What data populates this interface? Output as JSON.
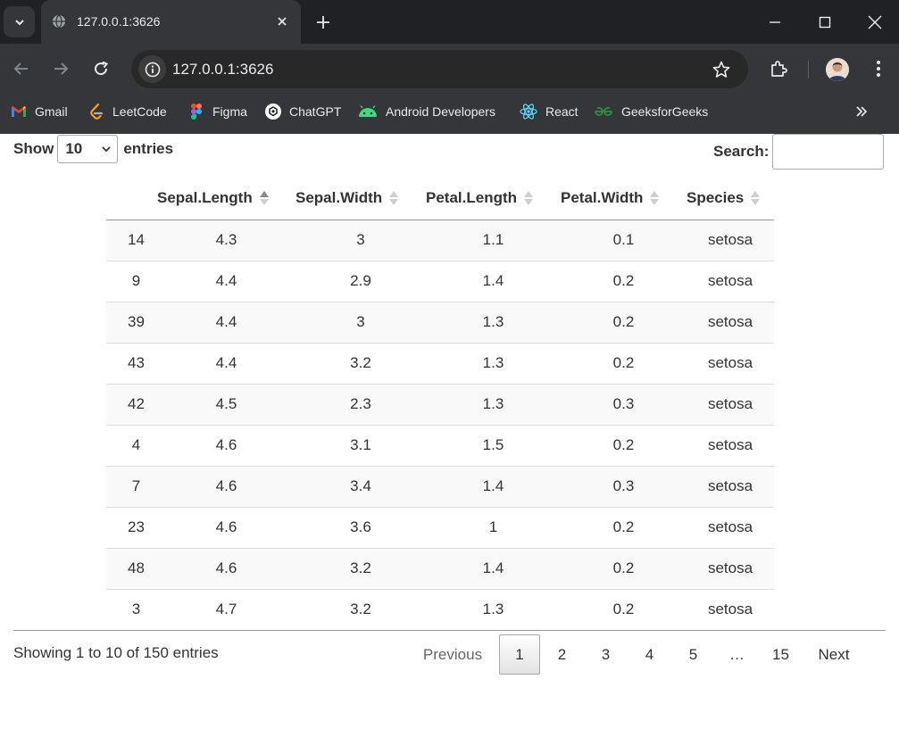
{
  "browser": {
    "tab_title": "127.0.0.1:3626",
    "url": "127.0.0.1:3626",
    "bookmarks": [
      {
        "label": "Gmail",
        "icon": "gmail-icon"
      },
      {
        "label": "LeetCode",
        "icon": "leetcode-icon"
      },
      {
        "label": "Figma",
        "icon": "figma-icon"
      },
      {
        "label": "ChatGPT",
        "icon": "chatgpt-icon"
      },
      {
        "label": "Android Developers",
        "icon": "android-icon"
      },
      {
        "label": "React",
        "icon": "react-icon"
      },
      {
        "label": "GeeksforGeeks",
        "icon": "geeksforgeeks-icon"
      }
    ]
  },
  "controls": {
    "show_label": "Show",
    "length_value": "10",
    "entries_label": "entries",
    "search_label": "Search:",
    "search_value": ""
  },
  "table": {
    "columns": [
      "",
      "Sepal.Length",
      "Sepal.Width",
      "Petal.Length",
      "Petal.Width",
      "Species"
    ],
    "sorted_column": "Sepal.Length",
    "rows": [
      [
        "14",
        "4.3",
        "3",
        "1.1",
        "0.1",
        "setosa"
      ],
      [
        "9",
        "4.4",
        "2.9",
        "1.4",
        "0.2",
        "setosa"
      ],
      [
        "39",
        "4.4",
        "3",
        "1.3",
        "0.2",
        "setosa"
      ],
      [
        "43",
        "4.4",
        "3.2",
        "1.3",
        "0.2",
        "setosa"
      ],
      [
        "42",
        "4.5",
        "2.3",
        "1.3",
        "0.3",
        "setosa"
      ],
      [
        "4",
        "4.6",
        "3.1",
        "1.5",
        "0.2",
        "setosa"
      ],
      [
        "7",
        "4.6",
        "3.4",
        "1.4",
        "0.3",
        "setosa"
      ],
      [
        "23",
        "4.6",
        "3.6",
        "1",
        "0.2",
        "setosa"
      ],
      [
        "48",
        "4.6",
        "3.2",
        "1.4",
        "0.2",
        "setosa"
      ],
      [
        "3",
        "4.7",
        "3.2",
        "1.3",
        "0.2",
        "setosa"
      ]
    ]
  },
  "footer": {
    "info": "Showing 1 to 10 of 150 entries",
    "previous": "Previous",
    "pages": [
      "1",
      "2",
      "3",
      "4",
      "5",
      "…",
      "15"
    ],
    "current_page": "1",
    "next": "Next"
  }
}
